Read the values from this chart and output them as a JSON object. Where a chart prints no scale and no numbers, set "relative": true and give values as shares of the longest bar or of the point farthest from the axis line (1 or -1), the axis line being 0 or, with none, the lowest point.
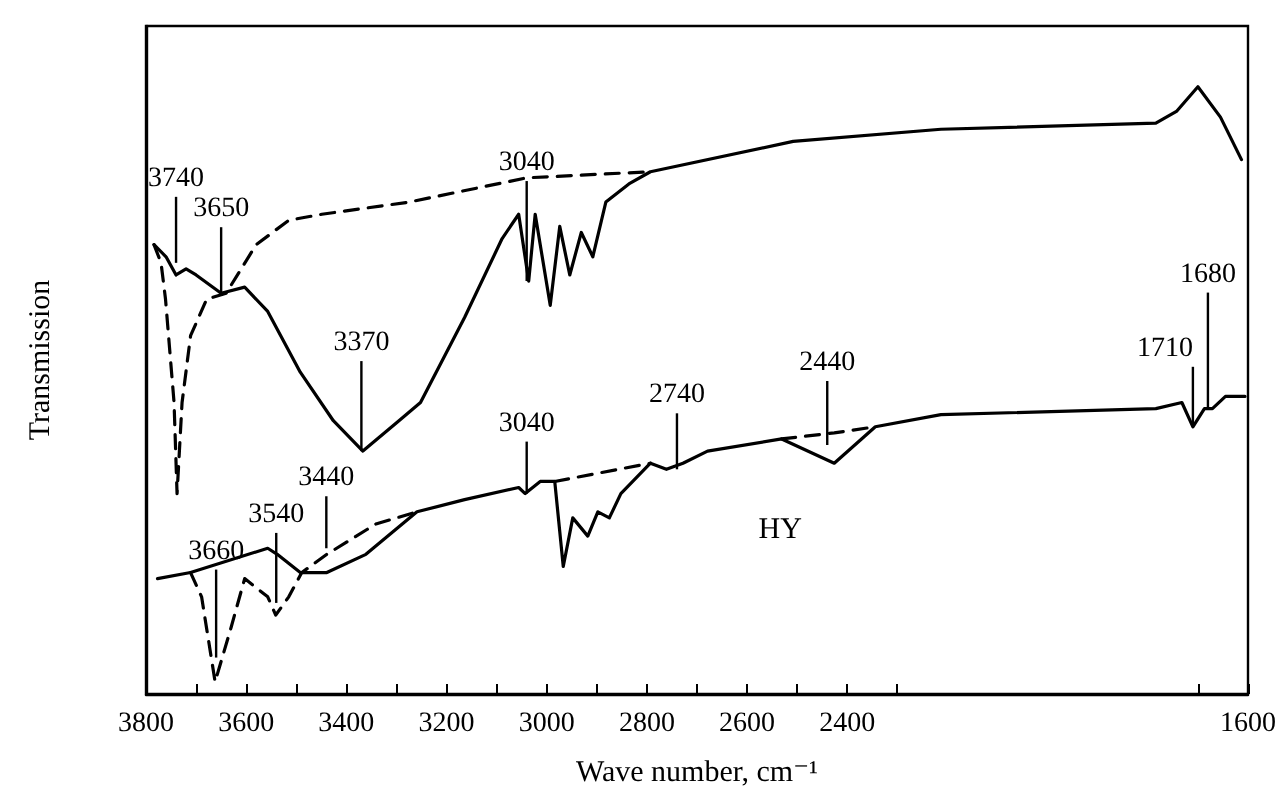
{
  "chart_data": {
    "type": "line",
    "relative": true,
    "xlabel": "Wave number, cm⁻¹",
    "ylabel": "Transmission",
    "marker": "none",
    "grid": false,
    "legend": false,
    "xlim": [
      3800,
      1600
    ],
    "xticks": [
      3800,
      {
        "value": 3700,
        "label": null
      },
      3600,
      {
        "value": 3500,
        "label": null
      },
      3400,
      {
        "value": 3300,
        "label": null
      },
      3200,
      {
        "value": 3100,
        "label": null
      },
      3000,
      {
        "value": 2900,
        "label": null
      },
      2800,
      {
        "value": 2700,
        "label": null
      },
      2600,
      {
        "value": 2500,
        "label": null
      },
      2400,
      {
        "value": 2300,
        "label": null
      },
      {
        "value": 1700,
        "label": null
      },
      1600
    ],
    "series": [
      {
        "color": "#000000",
        "line_style": "solid",
        "x": [
          3784,
          3760,
          3740,
          3720,
          3700,
          3650,
          3603,
          3557,
          3492,
          3426,
          3367,
          3295,
          3252,
          3164,
          3089,
          3056,
          3036,
          3023,
          2993,
          2974,
          2954,
          2931,
          2908,
          2882,
          2836,
          2793,
          2508,
          2213,
          1784,
          1742,
          1700,
          1655,
          1613
        ],
        "values": [
          0.74,
          0.72,
          0.69,
          0.7,
          0.69,
          0.66,
          0.67,
          0.63,
          0.53,
          0.45,
          0.4,
          0.45,
          0.48,
          0.62,
          0.75,
          0.79,
          0.68,
          0.79,
          0.64,
          0.77,
          0.69,
          0.76,
          0.72,
          0.81,
          0.84,
          0.86,
          0.91,
          0.93,
          0.94,
          0.96,
          1,
          0.95,
          0.88
        ]
      },
      {
        "color": "#000000",
        "line_style": "dashed",
        "x": [
          3784,
          3770,
          3761,
          3744,
          3738,
          3728,
          3711,
          3679,
          3640,
          3580,
          3515,
          3449,
          3275,
          3040,
          2793
        ],
        "values": [
          0.74,
          0.71,
          0.65,
          0.48,
          0.33,
          0.48,
          0.59,
          0.65,
          0.66,
          0.74,
          0.78,
          0.79,
          0.81,
          0.85,
          0.86
        ]
      },
      {
        "name": "HY",
        "color": "#000000",
        "line_style": "solid",
        "x": [
          3777,
          3711,
          3557,
          3538,
          3492,
          3439,
          3361,
          3259,
          3164,
          3056,
          3043,
          3013,
          2984,
          2967,
          2948,
          2918,
          2898,
          2875,
          2852,
          2793,
          2761,
          2728,
          2679,
          2531,
          2426,
          2344,
          2213,
          1784,
          1732,
          1710,
          1687,
          1671,
          1645,
          1606
        ],
        "values": [
          0.19,
          0.2,
          0.24,
          0.23,
          0.2,
          0.2,
          0.23,
          0.3,
          0.32,
          0.34,
          0.33,
          0.35,
          0.35,
          0.21,
          0.29,
          0.26,
          0.3,
          0.29,
          0.33,
          0.38,
          0.37,
          0.38,
          0.4,
          0.42,
          0.38,
          0.44,
          0.46,
          0.47,
          0.48,
          0.44,
          0.47,
          0.47,
          0.49,
          0.49
        ]
      },
      {
        "color": "#000000",
        "line_style": "dashed",
        "x": [
          3711,
          3689,
          3662,
          3630,
          3603,
          3557,
          3541,
          3515,
          3489,
          3439,
          3341,
          3259,
          3100,
          2984,
          2793,
          2650,
          2531,
          2426,
          2344
        ],
        "values": [
          0.2,
          0.16,
          0.02,
          0.11,
          0.19,
          0.16,
          0.13,
          0.16,
          0.2,
          0.23,
          0.28,
          0.3,
          null,
          0.35,
          0.38,
          null,
          0.42,
          0.43,
          0.44
        ]
      }
    ],
    "annotations": [
      {
        "text": "3740",
        "x": 3740,
        "y": 0.71
      },
      {
        "text": "3650",
        "x": 3650,
        "y": 0.66
      },
      {
        "text": "3370",
        "x": 3370,
        "y": 0.4
      },
      {
        "text": "3040",
        "x": 3040,
        "y": 0.68
      },
      {
        "text": "3040",
        "x": 3040,
        "y": 0.33
      },
      {
        "text": "3660",
        "x": 3660,
        "y": 0.06
      },
      {
        "text": "3540",
        "x": 3540,
        "y": 0.15
      },
      {
        "text": "3440",
        "x": 3440,
        "y": 0.24
      },
      {
        "text": "2740",
        "x": 2740,
        "y": 0.37
      },
      {
        "text": "2440",
        "x": 2440,
        "y": 0.41
      },
      {
        "text": "1710",
        "x": 1710,
        "y": 0.44
      },
      {
        "text": "1680",
        "x": 1680,
        "y": 0.47
      }
    ]
  }
}
